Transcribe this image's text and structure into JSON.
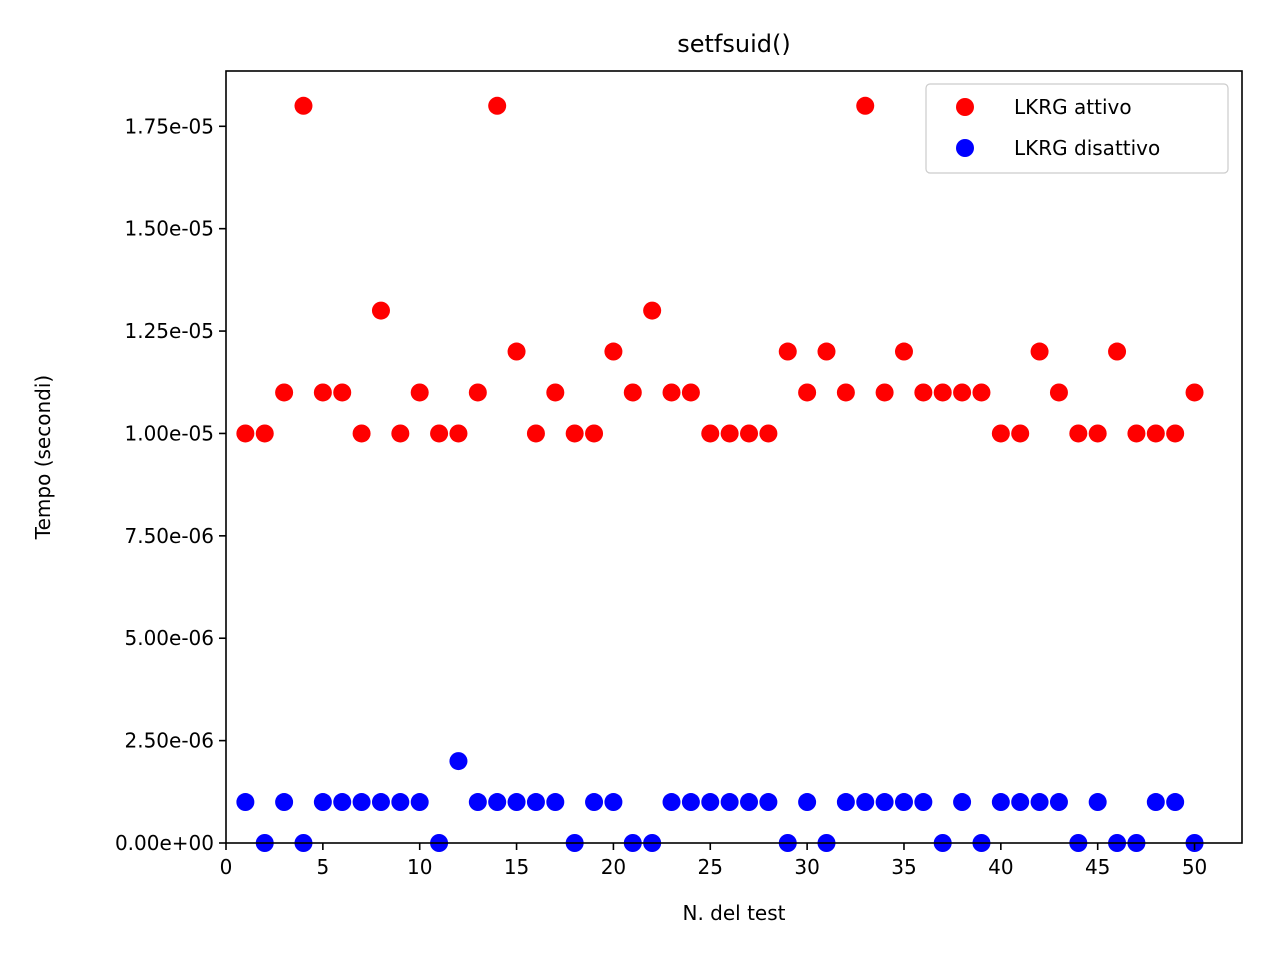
{
  "chart_data": {
    "type": "scatter",
    "title": "setfsuid()",
    "xlabel": "N. del test",
    "ylabel": "Tempo (secondi)",
    "xlim": [
      0,
      52.45
    ],
    "ylim": [
      0,
      1.885e-05
    ],
    "xticks": [
      0,
      5,
      10,
      15,
      20,
      25,
      30,
      35,
      40,
      45,
      50
    ],
    "xtick_labels": [
      "0",
      "5",
      "10",
      "15",
      "20",
      "25",
      "30",
      "35",
      "40",
      "45",
      "50"
    ],
    "yticks": [
      0,
      2.5e-06,
      5e-06,
      7.5e-06,
      1e-05,
      1.25e-05,
      1.5e-05,
      1.75e-05
    ],
    "ytick_labels": [
      "0.00e+00",
      "2.50e-06",
      "5.00e-06",
      "7.50e-06",
      "1.00e-05",
      "1.25e-05",
      "1.50e-05",
      "1.75e-05"
    ],
    "grid": false,
    "legend_position": "top-right",
    "x": [
      1,
      2,
      3,
      4,
      5,
      6,
      7,
      8,
      9,
      10,
      11,
      12,
      13,
      14,
      15,
      16,
      17,
      18,
      19,
      20,
      21,
      22,
      23,
      24,
      25,
      26,
      27,
      28,
      29,
      30,
      31,
      32,
      33,
      34,
      35,
      36,
      37,
      38,
      39,
      40,
      41,
      42,
      43,
      44,
      45,
      46,
      47,
      48,
      49,
      50
    ],
    "series": [
      {
        "name": "LKRG attivo",
        "color": "#ff0000",
        "values": [
          1e-05,
          1e-05,
          1.1e-05,
          1.8e-05,
          1.1e-05,
          1.1e-05,
          1e-05,
          1.3e-05,
          1e-05,
          1.1e-05,
          1e-05,
          1e-05,
          1.1e-05,
          1.8e-05,
          1.2e-05,
          1e-05,
          1.1e-05,
          1e-05,
          1e-05,
          1.2e-05,
          1.1e-05,
          1.3e-05,
          1.1e-05,
          1.1e-05,
          1e-05,
          1e-05,
          1e-05,
          1e-05,
          1.2e-05,
          1.1e-05,
          1.2e-05,
          1.1e-05,
          1.8e-05,
          1.1e-05,
          1.2e-05,
          1.1e-05,
          1.1e-05,
          1.1e-05,
          1.1e-05,
          1e-05,
          1e-05,
          1.2e-05,
          1.1e-05,
          1e-05,
          1e-05,
          1.2e-05,
          1e-05,
          1e-05,
          1e-05,
          1.1e-05
        ]
      },
      {
        "name": "LKRG disattivo",
        "color": "#0000ff",
        "values": [
          1e-06,
          0,
          1e-06,
          0,
          1e-06,
          1e-06,
          1e-06,
          1e-06,
          1e-06,
          1e-06,
          0,
          2e-06,
          1e-06,
          1e-06,
          1e-06,
          1e-06,
          1e-06,
          0,
          1e-06,
          1e-06,
          0,
          0,
          1e-06,
          1e-06,
          1e-06,
          1e-06,
          1e-06,
          1e-06,
          0,
          1e-06,
          0,
          1e-06,
          1e-06,
          1e-06,
          1e-06,
          1e-06,
          0,
          1e-06,
          0,
          1e-06,
          1e-06,
          1e-06,
          1e-06,
          0,
          1e-06,
          0,
          0,
          1e-06,
          1e-06,
          0
        ]
      }
    ]
  }
}
